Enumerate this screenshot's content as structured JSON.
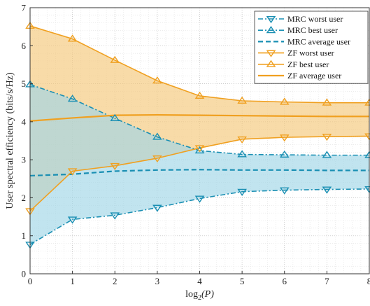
{
  "chart_data": {
    "type": "line",
    "xlabel": "log",
    "xlabel_sub": "2",
    "xlabel_arg": "(P)",
    "ylabel": "User spectral efficiency (bits/s/Hz)",
    "xlim": [
      0,
      8
    ],
    "ylim": [
      0,
      7
    ],
    "x_ticks": [
      0,
      1,
      2,
      3,
      4,
      5,
      6,
      7,
      8
    ],
    "y_ticks": [
      0,
      1,
      2,
      3,
      4,
      5,
      6,
      7
    ],
    "grid": true,
    "minor_grid": true,
    "legend_position": "top-right",
    "x": [
      0,
      1,
      2,
      3,
      4,
      5,
      6,
      7,
      8
    ],
    "series": [
      {
        "name": "MRC worst user",
        "style": "dashdot",
        "marker": "triangle-down",
        "color": "#1a8fb3",
        "values": [
          0.77,
          1.43,
          1.54,
          1.74,
          1.98,
          2.16,
          2.2,
          2.22,
          2.23
        ]
      },
      {
        "name": "MRC best user",
        "style": "dashdot",
        "marker": "triangle-up",
        "color": "#1a8fb3",
        "values": [
          4.98,
          4.6,
          4.09,
          3.6,
          3.24,
          3.14,
          3.13,
          3.12,
          3.12
        ]
      },
      {
        "name": "MRC average user",
        "style": "dashed",
        "marker": "none",
        "color": "#1a8fb3",
        "values": [
          2.58,
          2.62,
          2.7,
          2.73,
          2.74,
          2.73,
          2.73,
          2.72,
          2.72
        ]
      },
      {
        "name": "ZF worst user",
        "style": "solid",
        "marker": "triangle-down",
        "color": "#f0a020",
        "values": [
          1.65,
          2.7,
          2.84,
          3.04,
          3.31,
          3.54,
          3.59,
          3.61,
          3.62
        ]
      },
      {
        "name": "ZF best user",
        "style": "solid",
        "marker": "triangle-up",
        "color": "#f0a020",
        "values": [
          6.52,
          6.18,
          5.62,
          5.08,
          4.68,
          4.55,
          4.52,
          4.5,
          4.5
        ]
      },
      {
        "name": "ZF average user",
        "style": "solid",
        "marker": "none",
        "color": "#f0a020",
        "values": [
          4.02,
          4.1,
          4.17,
          4.18,
          4.17,
          4.16,
          4.15,
          4.14,
          4.14
        ]
      }
    ],
    "fills": [
      {
        "between": [
          "ZF worst user",
          "ZF best user"
        ],
        "color": "#f5c87a"
      },
      {
        "between": [
          "MRC worst user",
          "MRC best user"
        ],
        "color": "#9fd6e6"
      }
    ]
  }
}
